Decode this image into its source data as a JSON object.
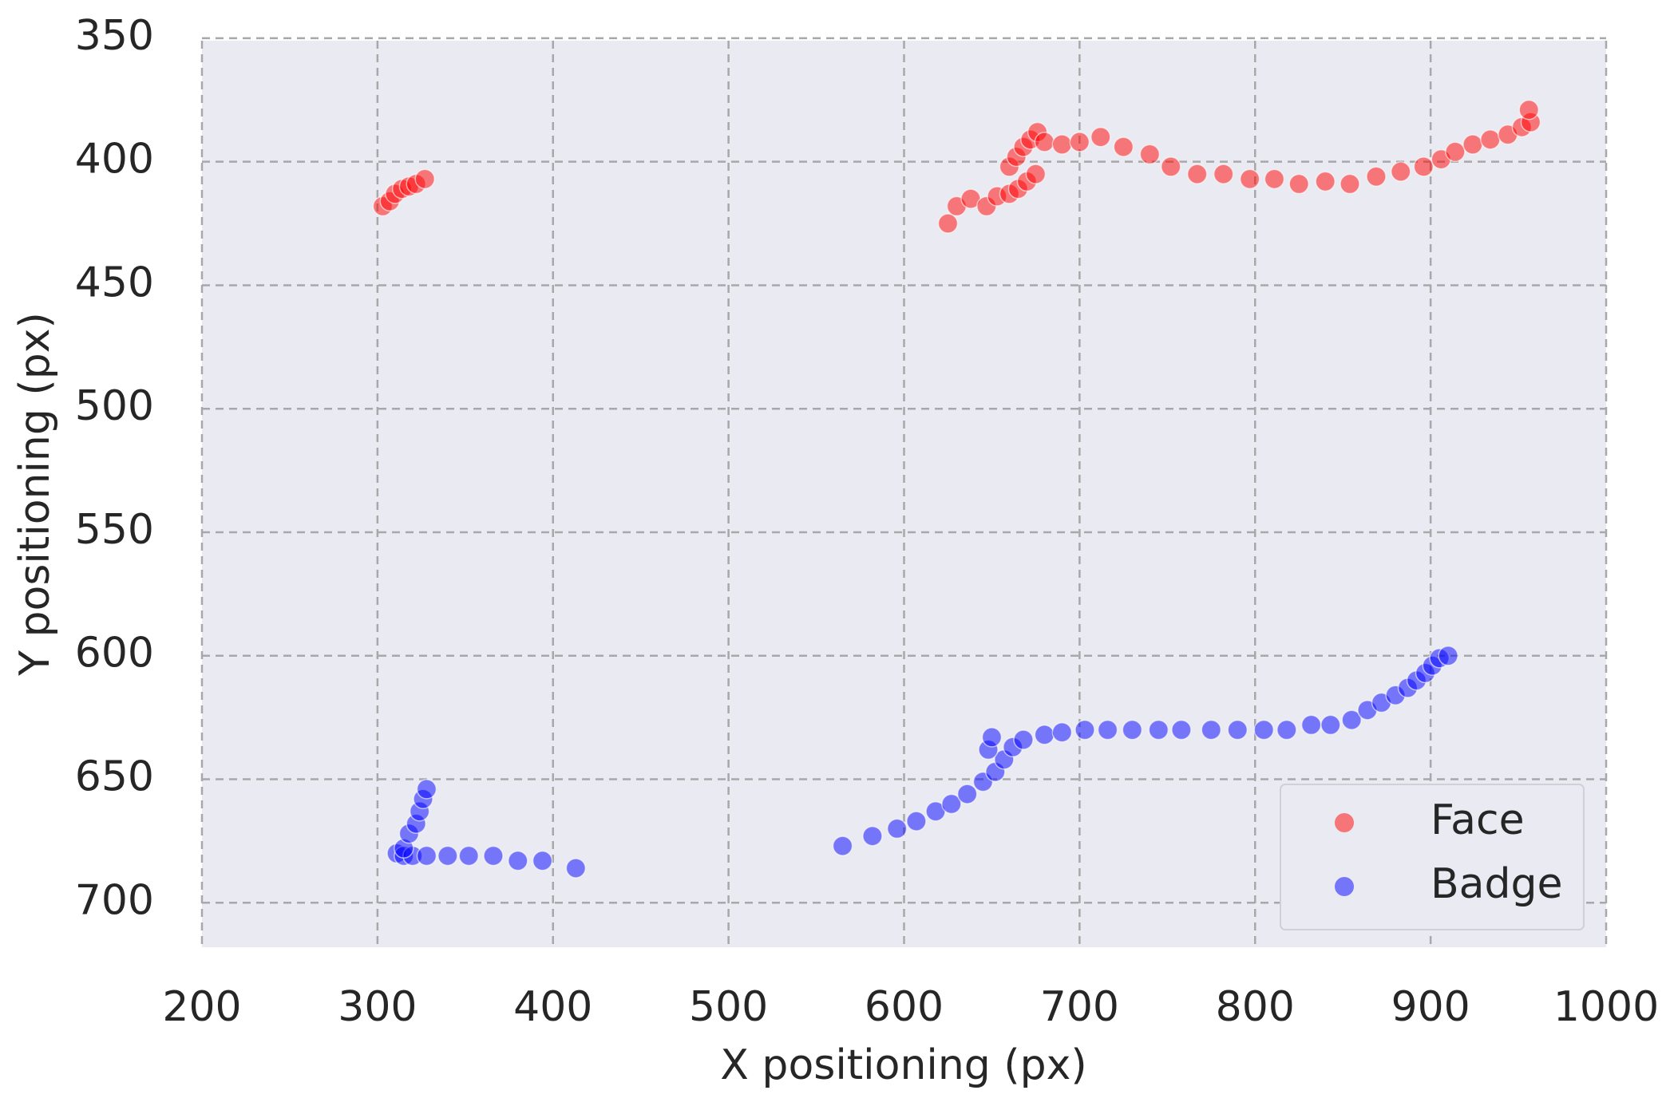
{
  "chart_data": {
    "type": "scatter",
    "x_label": "X positioning (px)",
    "y_label": "Y positioning (px)",
    "xlim": [
      200,
      1000
    ],
    "xticks": [
      200,
      300,
      400,
      500,
      600,
      700,
      800,
      900,
      1000
    ],
    "ylim": [
      351,
      718
    ],
    "y_inverted": true,
    "yticks": [
      350,
      400,
      450,
      500,
      550,
      600,
      650,
      700
    ],
    "grid": true,
    "legend": "lower right",
    "alpha": 0.5,
    "series": [
      {
        "name": "Face",
        "color": "#ff0000",
        "x": [
          303,
          307,
          310,
          314,
          318,
          322,
          327,
          625,
          630,
          638,
          647,
          653,
          660,
          665,
          670,
          675,
          660,
          664,
          668,
          672,
          676,
          680,
          690,
          700,
          712,
          725,
          740,
          752,
          767,
          782,
          797,
          811,
          825,
          840,
          854,
          869,
          883,
          896,
          906,
          914,
          924,
          934,
          944,
          952,
          957,
          956
        ],
        "values": [
          418,
          416,
          413,
          411,
          410,
          409,
          407,
          425,
          418,
          415,
          418,
          414,
          413,
          411,
          408,
          405,
          402,
          398,
          394,
          391,
          388,
          392,
          393,
          392,
          390,
          394,
          397,
          402,
          405,
          405,
          407,
          407,
          409,
          408,
          409,
          406,
          404,
          402,
          399,
          396,
          393,
          391,
          389,
          386,
          384,
          379
        ]
      },
      {
        "name": "Badge",
        "color": "#0000ff",
        "x": [
          311,
          315,
          320,
          328,
          340,
          352,
          366,
          380,
          394,
          413,
          315,
          318,
          322,
          324,
          326,
          328,
          565,
          582,
          596,
          607,
          618,
          627,
          636,
          645,
          652,
          657,
          662,
          648,
          650,
          668,
          680,
          690,
          703,
          716,
          730,
          745,
          758,
          775,
          790,
          805,
          818,
          832,
          843,
          855,
          864,
          872,
          880,
          887,
          892,
          897,
          901,
          905,
          910
        ],
        "values": [
          680,
          681,
          681,
          681,
          681,
          681,
          681,
          683,
          683,
          686,
          678,
          672,
          668,
          663,
          658,
          654,
          677,
          673,
          670,
          667,
          663,
          660,
          656,
          651,
          647,
          642,
          637,
          638,
          633,
          634,
          632,
          631,
          630,
          630,
          630,
          630,
          630,
          630,
          630,
          630,
          630,
          628,
          628,
          626,
          622,
          619,
          616,
          613,
          610,
          607,
          604,
          601,
          600
        ]
      }
    ]
  }
}
